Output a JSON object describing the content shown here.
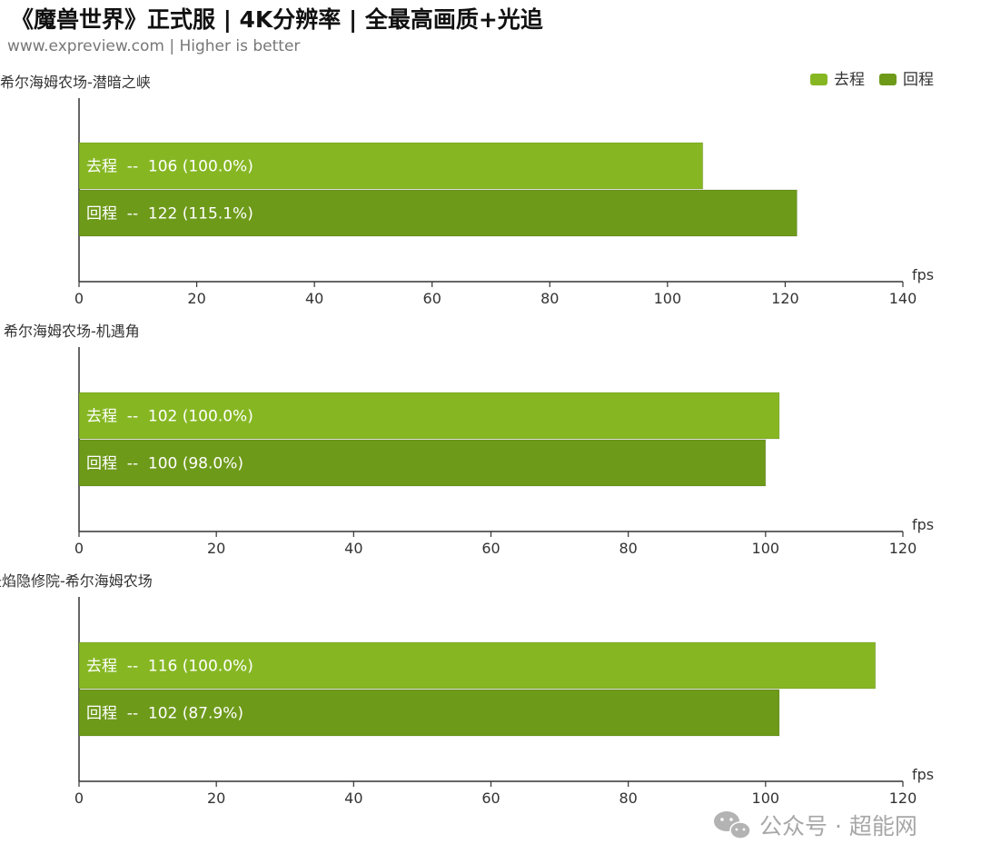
{
  "header": {
    "title": "《魔兽世界》正式服 | 4K分辨率 | 全最高画质+光追",
    "subtitle": "www.expreview.com | Higher is better"
  },
  "legend": [
    {
      "name": "去程",
      "color": "#86B723"
    },
    {
      "name": "回程",
      "color": "#6E9A1A"
    }
  ],
  "watermark": {
    "icon": "wechat-icon",
    "text": "公众号 · 超能网"
  },
  "chart_data": [
    {
      "type": "bar",
      "orientation": "horizontal",
      "title": "希尔海姆农场-潜暗之峡",
      "xlabel": "fps",
      "xlim": [
        0,
        140
      ],
      "xticks": [
        0,
        20,
        40,
        60,
        80,
        100,
        120,
        140
      ],
      "legend_position": "top-right",
      "grid": false,
      "series": [
        {
          "name": "去程",
          "value": 106,
          "label": "去程  --  106 (100.0%)"
        },
        {
          "name": "回程",
          "value": 122,
          "label": "回程  --  122 (115.1%)"
        }
      ]
    },
    {
      "type": "bar",
      "orientation": "horizontal",
      "title": "希尔海姆农场-机遇角",
      "xlabel": "fps",
      "xlim": [
        0,
        120
      ],
      "xticks": [
        0,
        20,
        40,
        60,
        80,
        100,
        120
      ],
      "grid": false,
      "series": [
        {
          "name": "去程",
          "value": 102,
          "label": "去程  --  102 (100.0%)"
        },
        {
          "name": "回程",
          "value": 100,
          "label": "回程  --  100 (98.0%)"
        }
      ]
    },
    {
      "type": "bar",
      "orientation": "horizontal",
      "title": "圣焰隐修院-希尔海姆农场",
      "xlabel": "fps",
      "xlim": [
        0,
        120
      ],
      "xticks": [
        0,
        20,
        40,
        60,
        80,
        100,
        120
      ],
      "grid": false,
      "series": [
        {
          "name": "去程",
          "value": 116,
          "label": "去程  --  116 (100.0%)"
        },
        {
          "name": "回程",
          "value": 102,
          "label": "回程  --  102 (87.9%)"
        }
      ]
    }
  ]
}
